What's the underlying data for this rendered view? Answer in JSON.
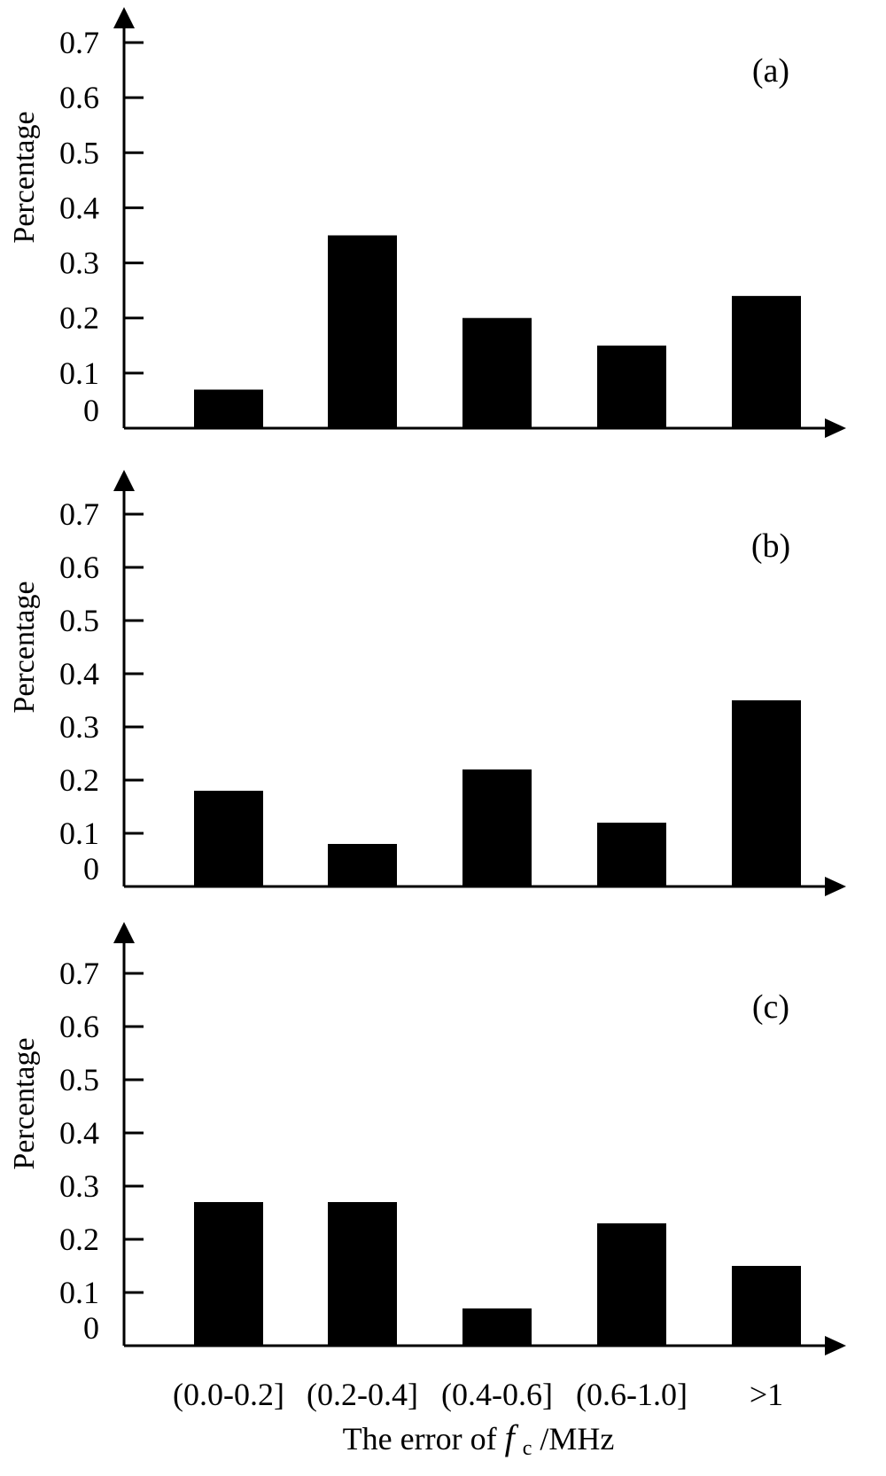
{
  "colors": {
    "bar": "#000000",
    "axis": "#000000",
    "background": "#ffffff"
  },
  "chart_data": [
    {
      "type": "bar",
      "panel_label": "(a)",
      "ylabel": "Percentage",
      "ylim": [
        0,
        0.7
      ],
      "yticks": [
        "0",
        "0.1",
        "0.2",
        "0.3",
        "0.4",
        "0.5",
        "0.6",
        "0.7"
      ],
      "categories": [
        "(0.0-0.2]",
        "(0.2-0.4]",
        "(0.4-0.6]",
        "(0.6-1.0]",
        ">1"
      ],
      "values": [
        0.07,
        0.35,
        0.2,
        0.15,
        0.24
      ]
    },
    {
      "type": "bar",
      "panel_label": "(b)",
      "ylabel": "Percentage",
      "ylim": [
        0,
        0.7
      ],
      "yticks": [
        "0",
        "0.1",
        "0.2",
        "0.3",
        "0.4",
        "0.5",
        "0.6",
        "0.7"
      ],
      "categories": [
        "(0.0-0.2]",
        "(0.2-0.4]",
        "(0.4-0.6]",
        "(0.6-1.0]",
        ">1"
      ],
      "values": [
        0.18,
        0.08,
        0.22,
        0.12,
        0.35
      ]
    },
    {
      "type": "bar",
      "panel_label": "(c)",
      "ylabel": "Percentage",
      "ylim": [
        0,
        0.7
      ],
      "yticks": [
        "0",
        "0.1",
        "0.2",
        "0.3",
        "0.4",
        "0.5",
        "0.6",
        "0.7"
      ],
      "categories": [
        "(0.0-0.2]",
        "(0.2-0.4]",
        "(0.4-0.6]",
        "(0.6-1.0]",
        ">1"
      ],
      "values": [
        0.27,
        0.27,
        0.07,
        0.23,
        0.15
      ]
    }
  ],
  "xaxis": {
    "tick_labels": [
      "(0.0-0.2]",
      "(0.2-0.4]",
      "(0.4-0.6]",
      "(0.6-1.0]",
      ">1"
    ],
    "label_prefix": "The error of ",
    "label_symbol": "f",
    "label_subscript": "c",
    "label_suffix": "/MHz"
  }
}
